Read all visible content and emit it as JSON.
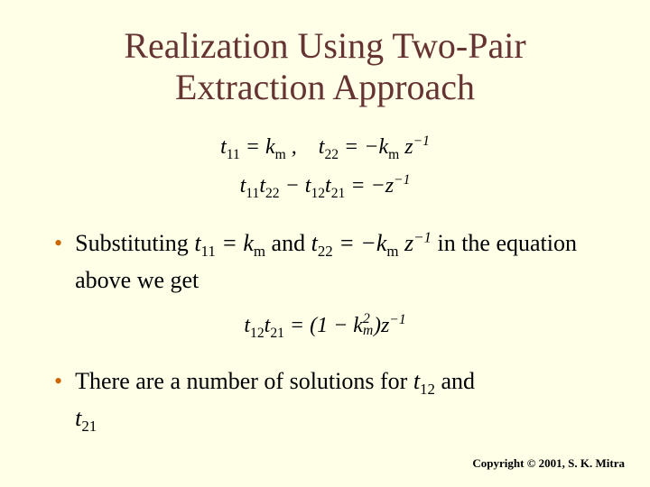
{
  "colors": {
    "background": "#ffffe8",
    "title": "#663333",
    "bullet_dot": "#cc6600",
    "text": "#000000"
  },
  "title_line1": "Realization Using Two-Pair",
  "title_line2": "Extraction Approach",
  "eq1_part1": "t₁₁ = kₘ ,",
  "eq1_part2": "t₂₂ = −kₘ z⁻¹",
  "eq2": "t₁₁t₂₂ − t₁₂t₂₁ = −z⁻¹",
  "bullet1_a": "Substituting ",
  "bullet1_math1": "t₁₁ = kₘ",
  "bullet1_b": " and ",
  "bullet1_math2": "t₂₂ = −kₘ z⁻¹",
  "bullet1_c": "  in the equation above we get",
  "result_eq": "t₁₂t₂₁ = (1 − k²ₘ) z⁻¹",
  "bullet2_a": "There are a number of solutions for ",
  "bullet2_math1": "t₁₂",
  "bullet2_b": " and ",
  "bullet2_math2": "t₂₁",
  "copyright": "Copyright © 2001, S. K. Mitra"
}
